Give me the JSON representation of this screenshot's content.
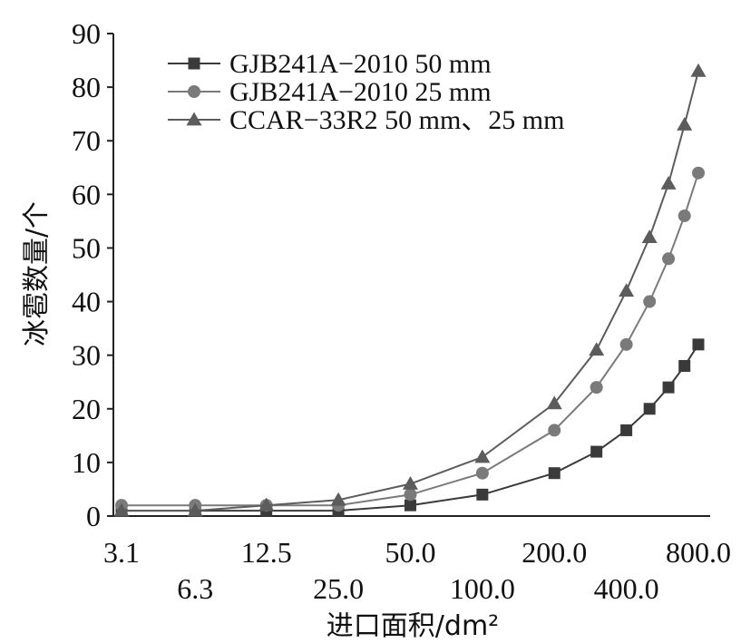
{
  "chart_data": {
    "type": "line",
    "title": "",
    "xlabel": "进口面积/dm²",
    "ylabel": "冰雹数量/个",
    "x_scale": "log",
    "xlim": [
      3.1,
      800
    ],
    "ylim": [
      0,
      90
    ],
    "ytick_step": 10,
    "grid": false,
    "legend": "top-left",
    "x_tick_labels_upper": [
      "3.1",
      "12.5",
      "50.0",
      "200.0",
      "800.0"
    ],
    "x_tick_labels_lower": [
      "6.3",
      "25.0",
      "100.0",
      "400.0"
    ],
    "x": [
      3.1,
      6.3,
      12.5,
      25.0,
      50.0,
      100.0,
      200.0,
      300.0,
      400.0,
      500.0,
      600.0,
      700.0,
      800.0
    ],
    "series": [
      {
        "name": "GJB241A−2010 50 mm",
        "marker": "square",
        "color": "#3a3a3a",
        "values": [
          1,
          1,
          1,
          1,
          2,
          4,
          8,
          12,
          16,
          20,
          24,
          28,
          32
        ]
      },
      {
        "name": "GJB241A−2010 25 mm",
        "marker": "circle",
        "color": "#7a7a7a",
        "values": [
          2,
          2,
          2,
          2,
          4,
          8,
          16,
          24,
          32,
          40,
          48,
          56,
          64
        ]
      },
      {
        "name": "CCAR−33R2 50 mm、25 mm",
        "marker": "triangle",
        "color": "#5c5c5c",
        "values": [
          1,
          1,
          2,
          3,
          6,
          11,
          21,
          31,
          42,
          52,
          62,
          73,
          83
        ]
      }
    ]
  }
}
